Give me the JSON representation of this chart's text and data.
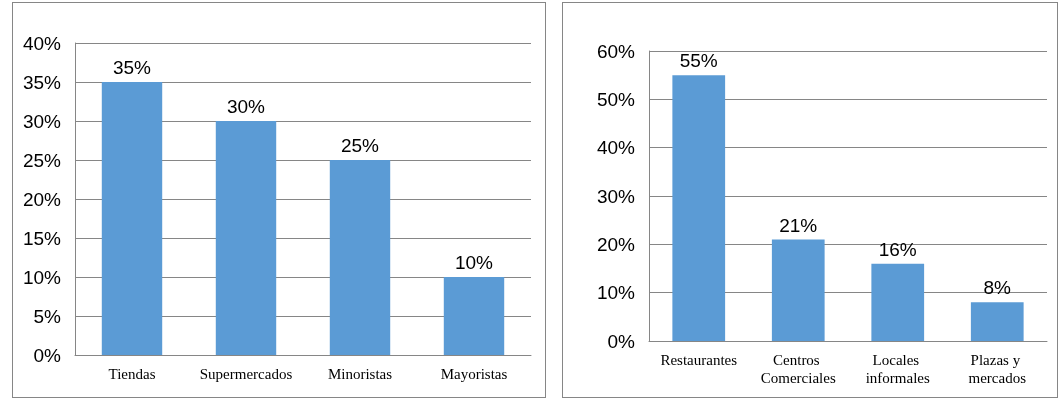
{
  "chart_data": [
    {
      "type": "bar",
      "categories": [
        "Tiendas",
        "Supermercados",
        "Minoristas",
        "Mayoristas"
      ],
      "values": [
        35,
        30,
        25,
        10
      ],
      "value_labels": [
        "35%",
        "30%",
        "25%",
        "10%"
      ],
      "color": "#5b9bd5",
      "ylim": [
        0,
        40
      ],
      "yticks": [
        {
          "value": 0,
          "label": "0%"
        },
        {
          "value": 5,
          "label": "5%"
        },
        {
          "value": 10,
          "label": "10%"
        },
        {
          "value": 15,
          "label": "15%"
        },
        {
          "value": 20,
          "label": "20%"
        },
        {
          "value": 25,
          "label": "25%"
        },
        {
          "value": 30,
          "label": "30%"
        },
        {
          "value": 35,
          "label": "35%"
        },
        {
          "value": 40,
          "label": "40%"
        }
      ],
      "grid": "y"
    },
    {
      "type": "bar",
      "categories": [
        "Restaurantes",
        "Centros Comerciales",
        "Locales informales",
        "Plazas y mercados"
      ],
      "values": [
        55,
        21,
        16,
        8
      ],
      "value_labels": [
        "55%",
        "21%",
        "16%",
        "8%"
      ],
      "color": "#5b9bd5",
      "ylim": [
        0,
        60
      ],
      "yticks": [
        {
          "value": 0,
          "label": "0%"
        },
        {
          "value": 10,
          "label": "10%"
        },
        {
          "value": 20,
          "label": "20%"
        },
        {
          "value": 30,
          "label": "30%"
        },
        {
          "value": 40,
          "label": "40%"
        },
        {
          "value": 50,
          "label": "50%"
        },
        {
          "value": 60,
          "label": "60%"
        }
      ],
      "grid": "y"
    }
  ]
}
